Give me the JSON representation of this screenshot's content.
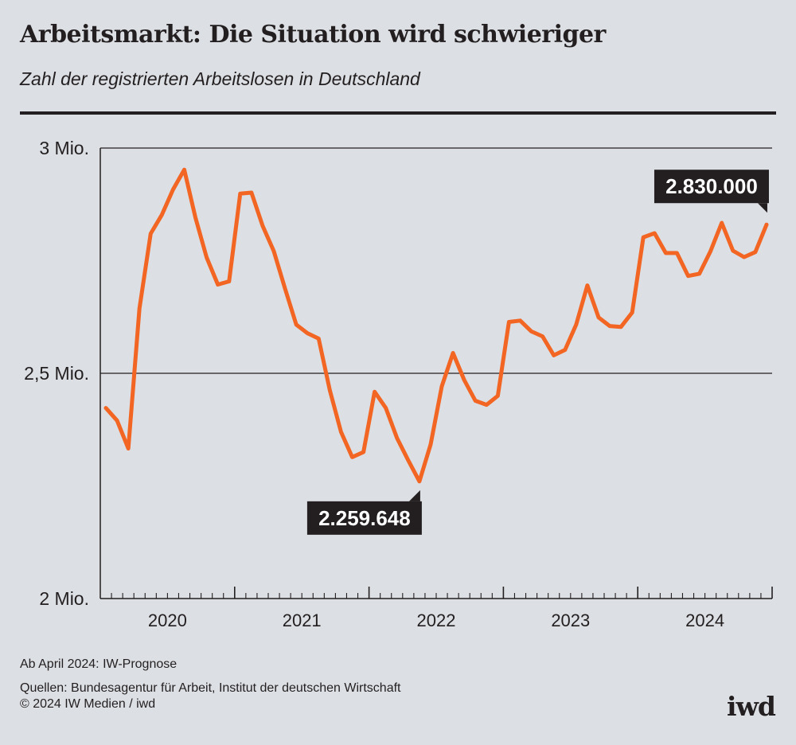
{
  "title": "Arbeitsmarkt: Die Situation wird schwieriger",
  "subtitle": "Zahl der registrierten Arbeitslosen in Deutschland",
  "footnote": "Ab April 2024: IW-Prognose",
  "sources": "Quellen: Bundesagentur für Arbeit, Institut der deutschen Wirtschaft",
  "copyright": "© 2024 IW Medien / iwd",
  "logo": "iwd",
  "colors": {
    "line": "#f26522",
    "background": "#dcdfe3",
    "label_box": "#231f20"
  },
  "chart_data": {
    "type": "line",
    "title": "Arbeitsmarkt: Die Situation wird schwieriger",
    "subtitle": "Zahl der registrierten Arbeitslosen in Deutschland",
    "x_start": "2020-01",
    "x_end": "2024-12",
    "x_interval": "monthly",
    "x_tick_labels": [
      "2020",
      "2021",
      "2022",
      "2023",
      "2024"
    ],
    "y_tick_labels": [
      "3 Mio.",
      "2,5 Mio.",
      "2 Mio."
    ],
    "y_ticks": [
      3.0,
      2.5,
      2.0
    ],
    "ylim": [
      2.0,
      3.0
    ],
    "y_unit": "Mio.",
    "grid": "horizontal at 2,5 Mio. and 3 Mio.",
    "series": [
      {
        "values": [
          2.423,
          2.395,
          2.333,
          2.644,
          2.81,
          2.852,
          2.908,
          2.952,
          2.845,
          2.757,
          2.697,
          2.704,
          2.899,
          2.901,
          2.827,
          2.771,
          2.688,
          2.608,
          2.589,
          2.577,
          2.462,
          2.37,
          2.314,
          2.325,
          2.459,
          2.423,
          2.356,
          2.307,
          2.26,
          2.342,
          2.471,
          2.545,
          2.485,
          2.439,
          2.43,
          2.45,
          2.614,
          2.617,
          2.593,
          2.582,
          2.54,
          2.552,
          2.608,
          2.695,
          2.624,
          2.605,
          2.603,
          2.635,
          2.802,
          2.811,
          2.767,
          2.767,
          2.716,
          2.721,
          2.771,
          2.834,
          2.772,
          2.758,
          2.769,
          2.83
        ]
      }
    ],
    "annotations": [
      {
        "text": "2.259.648",
        "index": 28
      },
      {
        "text": "2.830.000",
        "index": 59
      }
    ]
  }
}
